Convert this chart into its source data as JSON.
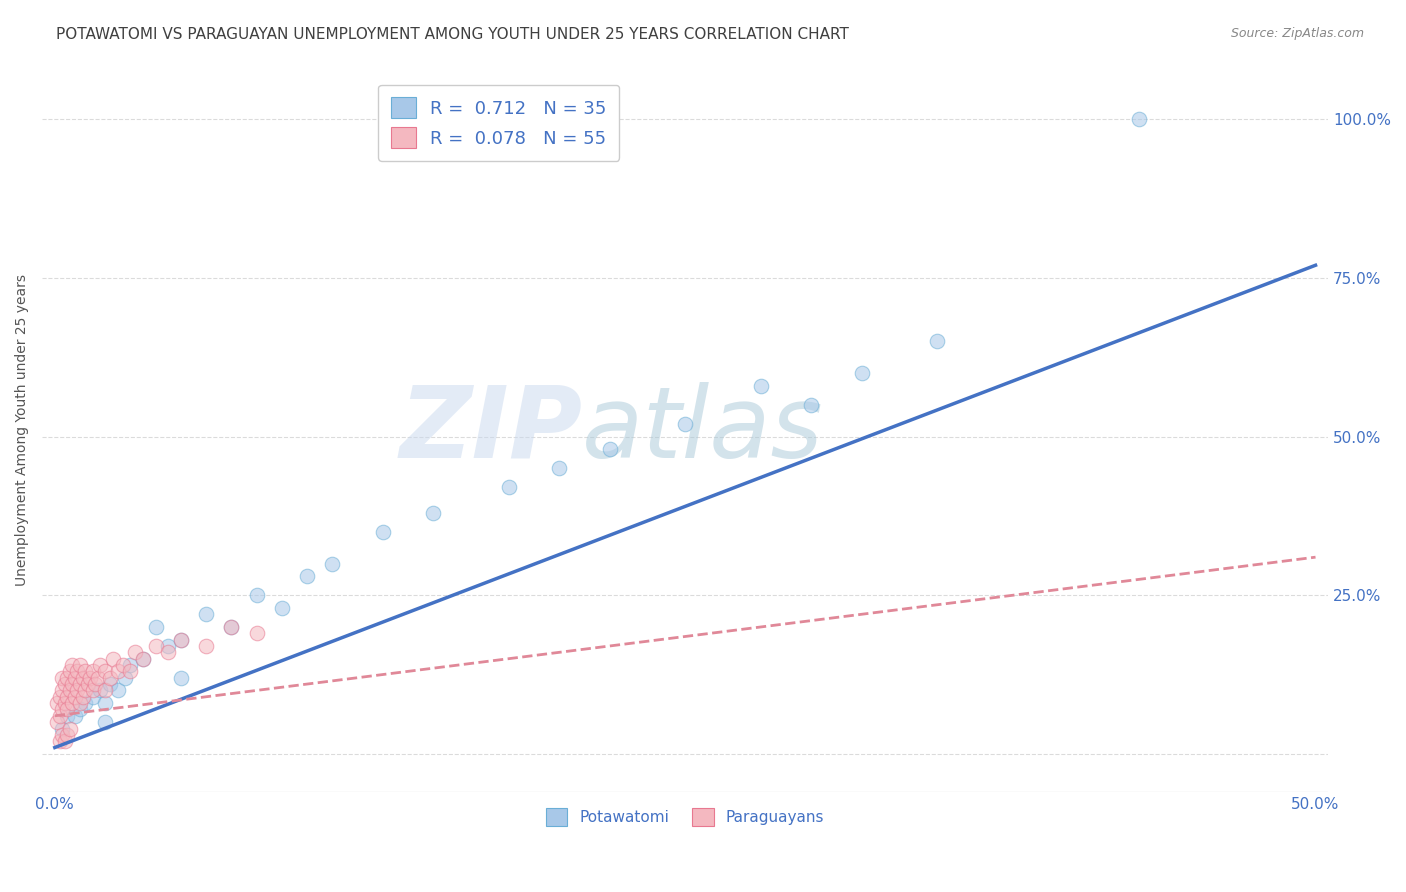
{
  "title": "POTAWATOMI VS PARAGUAYAN UNEMPLOYMENT AMONG YOUTH UNDER 25 YEARS CORRELATION CHART",
  "source": "Source: ZipAtlas.com",
  "ylabel": "Unemployment Among Youth under 25 years",
  "xlim": [
    -0.005,
    0.505
  ],
  "ylim": [
    -0.06,
    1.08
  ],
  "xticks": [
    0.0,
    0.1,
    0.2,
    0.3,
    0.4,
    0.5
  ],
  "xtick_labels": [
    "0.0%",
    "",
    "",
    "",
    "",
    "50.0%"
  ],
  "yticks": [
    0.0,
    0.25,
    0.5,
    0.75,
    1.0
  ],
  "ytick_labels_right": [
    "",
    "25.0%",
    "50.0%",
    "75.0%",
    "100.0%"
  ],
  "blue_color": "#a8c8e8",
  "blue_edge_color": "#6aaed6",
  "pink_color": "#f4b8c0",
  "pink_edge_color": "#e87890",
  "trend_blue_color": "#4472c4",
  "trend_pink_color": "#e08898",
  "legend_R_blue": "0.712",
  "legend_N_blue": "35",
  "legend_R_pink": "0.078",
  "legend_N_pink": "55",
  "watermark_zip": "ZIP",
  "watermark_atlas": "atlas",
  "watermark_color_zip": "#c8d8ee",
  "watermark_color_atlas": "#a8c8d8",
  "blue_slope": 1.52,
  "blue_intercept": 0.01,
  "pink_slope": 0.5,
  "pink_intercept": 0.06,
  "blue_x": [
    0.003,
    0.005,
    0.008,
    0.01,
    0.012,
    0.015,
    0.018,
    0.02,
    0.022,
    0.025,
    0.028,
    0.03,
    0.035,
    0.04,
    0.045,
    0.05,
    0.06,
    0.07,
    0.08,
    0.09,
    0.1,
    0.11,
    0.13,
    0.15,
    0.18,
    0.2,
    0.22,
    0.25,
    0.28,
    0.3,
    0.32,
    0.35,
    0.05,
    0.43,
    0.02
  ],
  "blue_y": [
    0.04,
    0.06,
    0.06,
    0.07,
    0.08,
    0.09,
    0.1,
    0.08,
    0.11,
    0.1,
    0.12,
    0.14,
    0.15,
    0.2,
    0.17,
    0.18,
    0.22,
    0.2,
    0.25,
    0.23,
    0.28,
    0.3,
    0.35,
    0.38,
    0.42,
    0.45,
    0.48,
    0.52,
    0.58,
    0.55,
    0.6,
    0.65,
    0.12,
    1.0,
    0.05
  ],
  "pink_x": [
    0.001,
    0.001,
    0.002,
    0.002,
    0.003,
    0.003,
    0.003,
    0.004,
    0.004,
    0.005,
    0.005,
    0.005,
    0.006,
    0.006,
    0.007,
    0.007,
    0.007,
    0.008,
    0.008,
    0.009,
    0.009,
    0.01,
    0.01,
    0.01,
    0.011,
    0.011,
    0.012,
    0.012,
    0.013,
    0.014,
    0.015,
    0.015,
    0.016,
    0.017,
    0.018,
    0.02,
    0.02,
    0.022,
    0.023,
    0.025,
    0.027,
    0.03,
    0.032,
    0.035,
    0.04,
    0.045,
    0.05,
    0.06,
    0.07,
    0.08,
    0.002,
    0.003,
    0.004,
    0.005,
    0.006
  ],
  "pink_y": [
    0.05,
    0.08,
    0.06,
    0.09,
    0.07,
    0.1,
    0.12,
    0.08,
    0.11,
    0.09,
    0.12,
    0.07,
    0.1,
    0.13,
    0.08,
    0.11,
    0.14,
    0.09,
    0.12,
    0.1,
    0.13,
    0.08,
    0.11,
    0.14,
    0.09,
    0.12,
    0.1,
    0.13,
    0.11,
    0.12,
    0.1,
    0.13,
    0.11,
    0.12,
    0.14,
    0.1,
    0.13,
    0.12,
    0.15,
    0.13,
    0.14,
    0.13,
    0.16,
    0.15,
    0.17,
    0.16,
    0.18,
    0.17,
    0.2,
    0.19,
    0.02,
    0.03,
    0.02,
    0.03,
    0.04
  ],
  "title_fontsize": 11,
  "axis_label_fontsize": 10,
  "tick_fontsize": 11,
  "legend_fontsize": 13,
  "marker_size": 110,
  "marker_alpha": 0.55,
  "background_color": "#ffffff",
  "grid_color": "#cccccc",
  "axis_text_color": "#4472c4",
  "title_color": "#404040"
}
